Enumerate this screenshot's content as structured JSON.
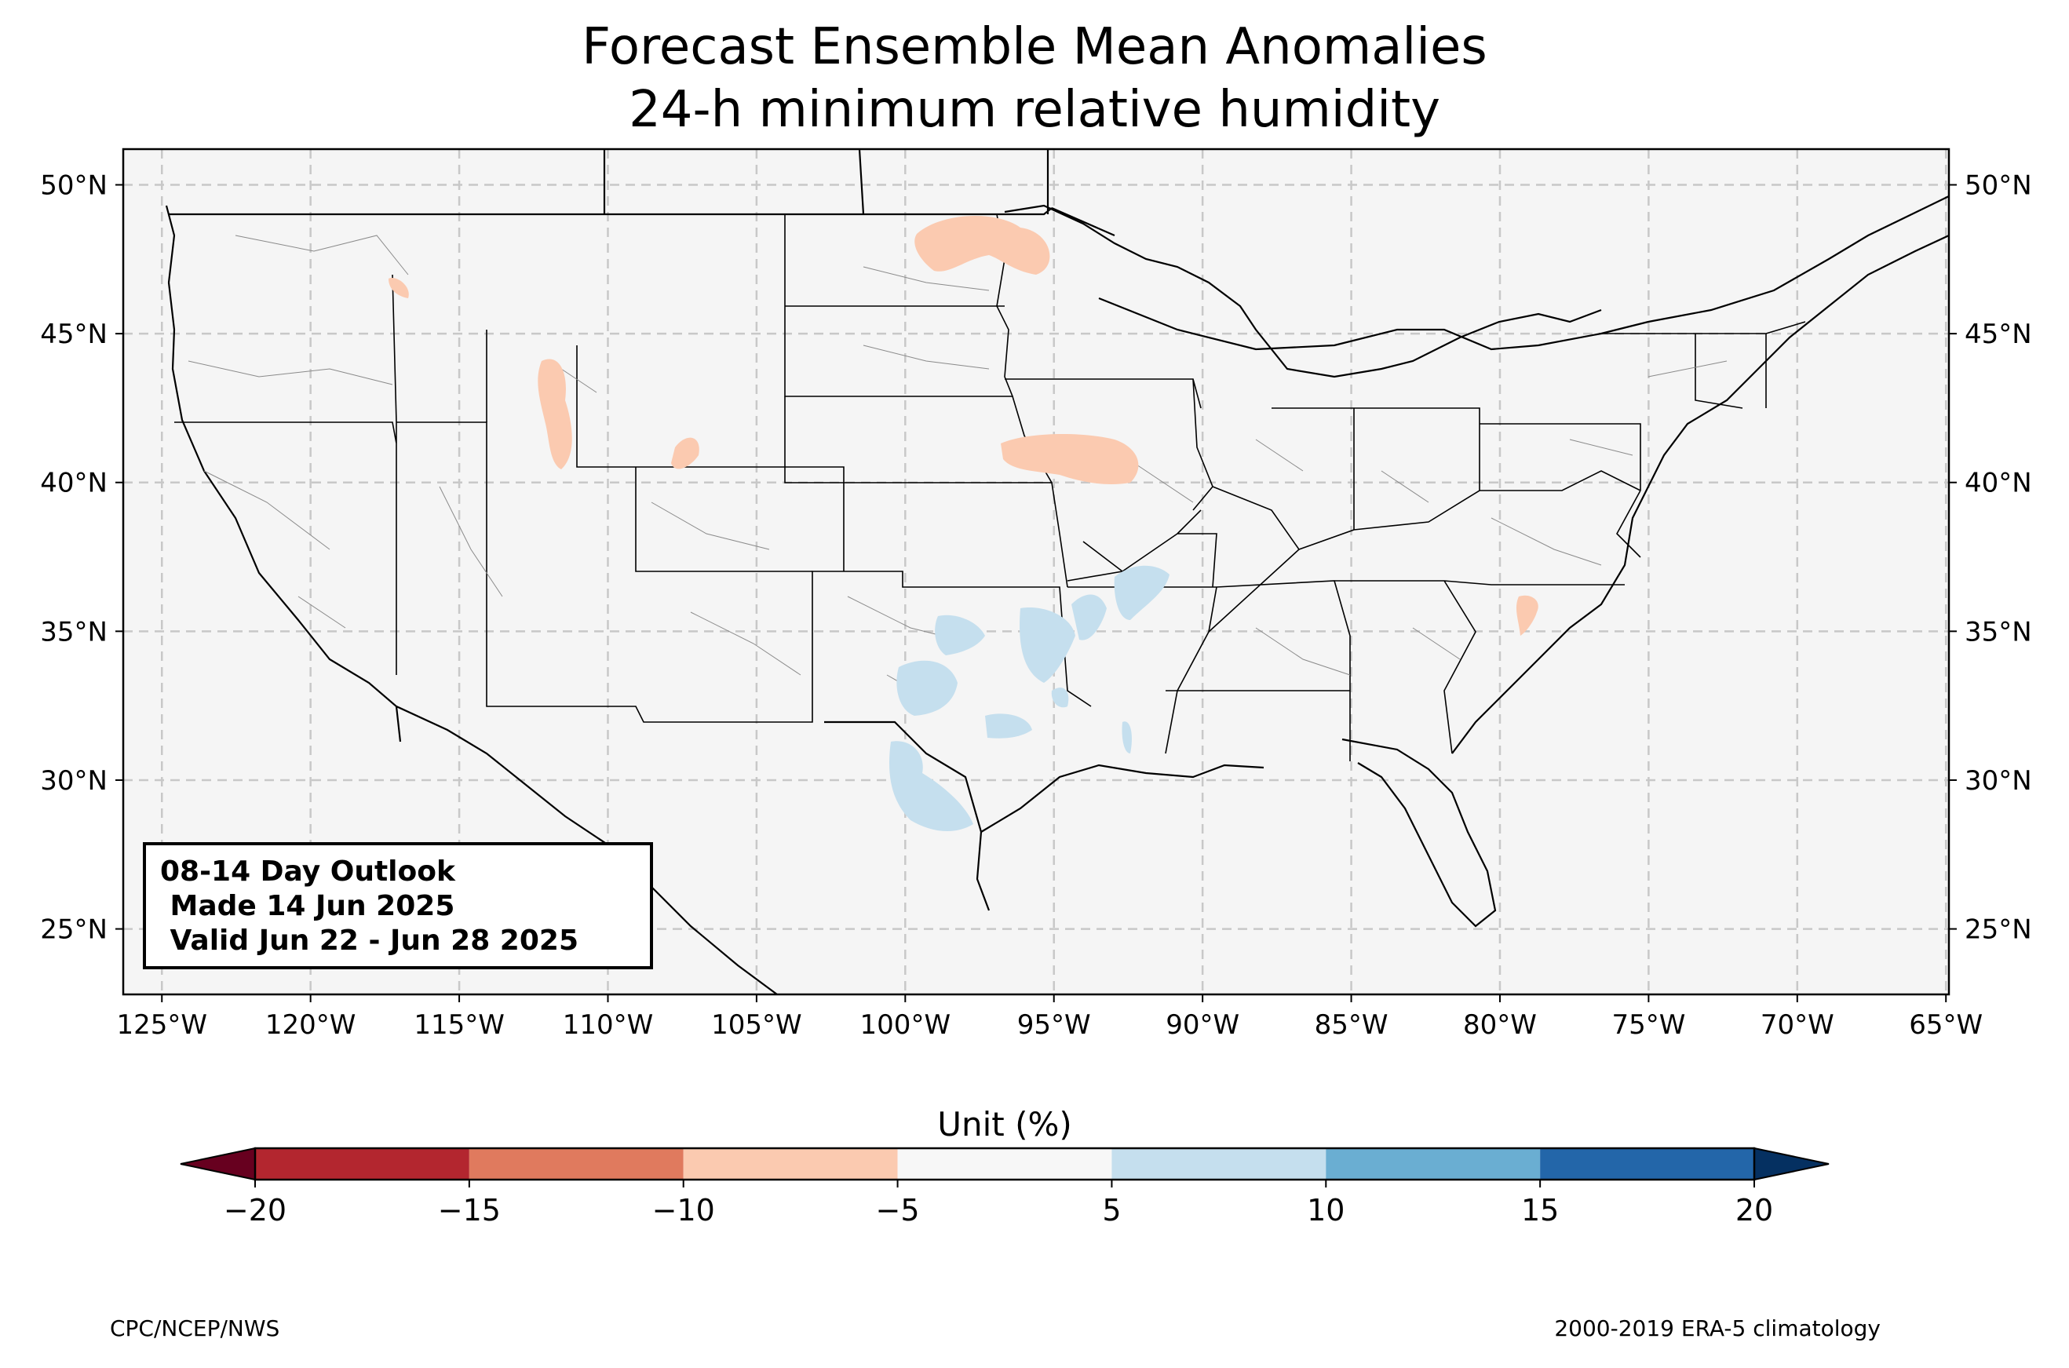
{
  "title": {
    "line1": "Forecast Ensemble Mean Anomalies",
    "line2": "24-h minimum relative humidity"
  },
  "info_box": {
    "line1": "08-14 Day Outlook",
    "line2": " Made 14 Jun 2025",
    "line3": " Valid Jun 22 - Jun 28 2025"
  },
  "map": {
    "lon_range": [
      -126.3,
      -64.9
    ],
    "lat_range": [
      22.8,
      51.2
    ],
    "lon_ticks": [
      -125,
      -120,
      -115,
      -110,
      -105,
      -100,
      -95,
      -90,
      -85,
      -80,
      -75,
      -70,
      -65
    ],
    "lon_tick_labels": [
      "125°W",
      "120°W",
      "115°W",
      "110°W",
      "105°W",
      "100°W",
      "95°W",
      "90°W",
      "85°W",
      "80°W",
      "75°W",
      "70°W",
      "65°W"
    ],
    "lat_ticks": [
      25,
      30,
      35,
      40,
      45,
      50
    ],
    "lat_tick_labels": [
      "25°N",
      "30°N",
      "35°N",
      "40°N",
      "45°N",
      "50°N"
    ],
    "gridlines": true,
    "land_color": "#f5f5f5",
    "dry_color": "#fbcab0",
    "moist_color": "#c5dfee"
  },
  "colorbar": {
    "label": "Unit (%)",
    "ticks": [
      -20,
      -15,
      -10,
      -5,
      5,
      10,
      15,
      20
    ],
    "tick_labels": [
      "−20",
      "−15",
      "−10",
      "−5",
      "5",
      "10",
      "15",
      "20"
    ],
    "colors": [
      "#b3262f",
      "#e07a5e",
      "#fbcab0",
      "#f7f7f7",
      "#c5dfee",
      "#6aaed2",
      "#2366a9"
    ],
    "under_color": "#67001f",
    "over_color": "#053061"
  },
  "footer": {
    "left": "CPC/NCEP/NWS",
    "right": "2000-2019 ERA-5 climatology"
  }
}
